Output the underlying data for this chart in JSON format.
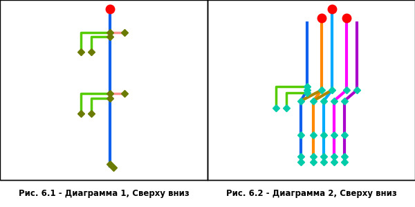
{
  "fig1_caption": "Рис. 6.1 - Диаграмма 1, Сверху вниз",
  "fig2_caption": "Рис. 6.2 - Диаграмма 2, Сверху вниз",
  "bg_color": "#ffffff",
  "border_color": "#000000",
  "caption_fontsize": 8.5,
  "red_color": "#ff0000",
  "blue_color": "#1060ee",
  "green_color": "#55cc00",
  "pink_color": "#ff9090",
  "olive_color": "#6b7a00",
  "orange_color": "#ff8800",
  "magenta_color": "#ff00ff",
  "cyan_color": "#00aaff",
  "purple_color": "#aa00cc",
  "teal_color": "#00ccaa",
  "darkgold_color": "#aa8800"
}
